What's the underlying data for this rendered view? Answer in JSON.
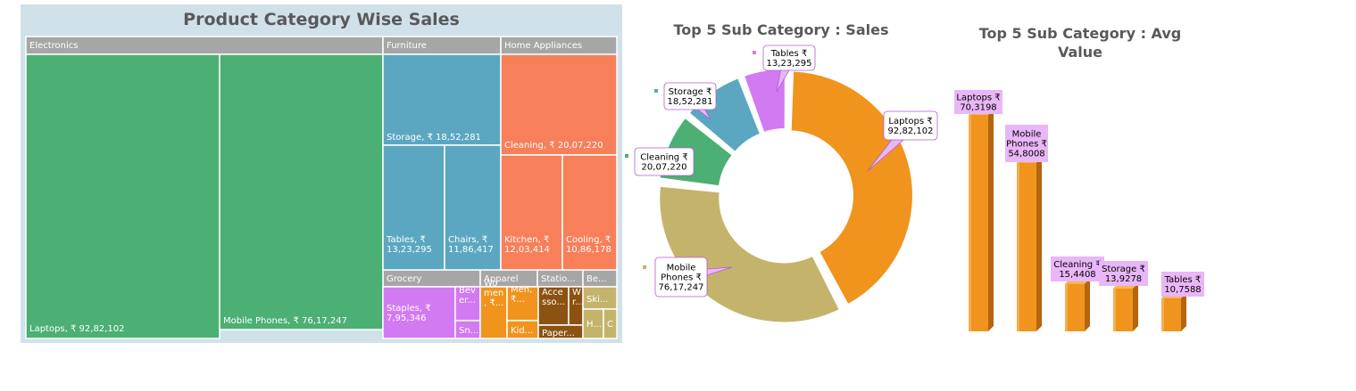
{
  "colors": {
    "electronics": "#4caf73",
    "furniture": "#5ba7c1",
    "home_appliances": "#f77f5a",
    "grocery": "#d27af2",
    "apparel": "#f0941d",
    "stationery": "#8c5212",
    "beauty": "#c4b46b",
    "header_gray": "#a6a6a6",
    "callout_fill": "#e9b6f7",
    "donut_laptops": "#f0941d",
    "donut_mobile": "#c4b46b",
    "donut_cleaning": "#4caf73",
    "donut_storage": "#5ba7c1",
    "donut_tables": "#d27af2",
    "bar_fill": "#f0941d"
  },
  "treemap": {
    "title": "Product Category Wise Sales",
    "headers": [
      "Electronics",
      "Furniture",
      "Home Appliances",
      "Grocery",
      "Apparel",
      "Statio...",
      "Be..."
    ],
    "tiles": [
      {
        "label": [
          "Laptops, ₹ 92,82,102"
        ],
        "value": 9282102
      },
      {
        "label": [
          "Mobile Phones, ₹ 76,17,247"
        ],
        "value": 7617247
      },
      {
        "label": [
          "Storage, ₹ 18,52,281"
        ],
        "value": 1852281
      },
      {
        "label": [
          "Tables, ₹",
          "13,23,295"
        ],
        "value": 1323295
      },
      {
        "label": [
          "Chairs, ₹",
          "11,86,417"
        ],
        "value": 1186417
      },
      {
        "label": [
          "Cleaning, ₹ 20,07,220"
        ],
        "value": 2007220
      },
      {
        "label": [
          "Kitchen, ₹",
          "12,03,414"
        ],
        "value": 1203414
      },
      {
        "label": [
          "Cooling, ₹",
          "10,86,178"
        ],
        "value": 1086178
      },
      {
        "label": [
          "Staples, ₹",
          "7,95,346"
        ],
        "value": 795346
      },
      {
        "label": [
          "Bev",
          "er..."
        ]
      },
      {
        "label": [
          "Sn..."
        ]
      },
      {
        "label": [
          "Wo",
          "men",
          ", ₹..."
        ]
      },
      {
        "label": [
          "Men,",
          "₹..."
        ]
      },
      {
        "label": [
          "Kid..."
        ]
      },
      {
        "label": [
          "Acce",
          "sso..."
        ]
      },
      {
        "label": [
          "W",
          "r..."
        ]
      },
      {
        "label": [
          "Paper..."
        ]
      },
      {
        "label": [
          "Ski..."
        ]
      },
      {
        "label": [
          "H..."
        ]
      },
      {
        "label": [
          "C"
        ]
      }
    ]
  },
  "chart_data": [
    {
      "type": "pie",
      "title": "Top 5 Sub Category : Sales",
      "categories": [
        "Laptops",
        "Mobile Phones",
        "Cleaning",
        "Storage",
        "Tables"
      ],
      "values": [
        9282102,
        7617247,
        2007220,
        1852281,
        1323295
      ],
      "labels": [
        [
          "Laptops ₹",
          "92,82,102"
        ],
        [
          "Mobile",
          "Phones ₹",
          "76,17,247"
        ],
        [
          "Cleaning ₹",
          "20,07,220"
        ],
        [
          "Storage ₹",
          "18,52,281"
        ],
        [
          "Tables ₹",
          "13,23,295"
        ]
      ]
    },
    {
      "type": "bar",
      "title": "Top 5 Sub Category : Avg Value",
      "categories": [
        "Laptops",
        "Mobile Phones",
        "Cleaning",
        "Storage",
        "Tables"
      ],
      "values": [
        703198,
        548008,
        154408,
        139278,
        107588
      ],
      "labels": [
        [
          "Laptops ₹",
          "70,3198"
        ],
        [
          "Mobile",
          "Phones ₹",
          "54,8008"
        ],
        [
          "Cleaning ₹",
          "15,4408"
        ],
        [
          "Storage ₹",
          "13,9278"
        ],
        [
          "Tables ₹",
          "10,7588"
        ]
      ]
    }
  ]
}
